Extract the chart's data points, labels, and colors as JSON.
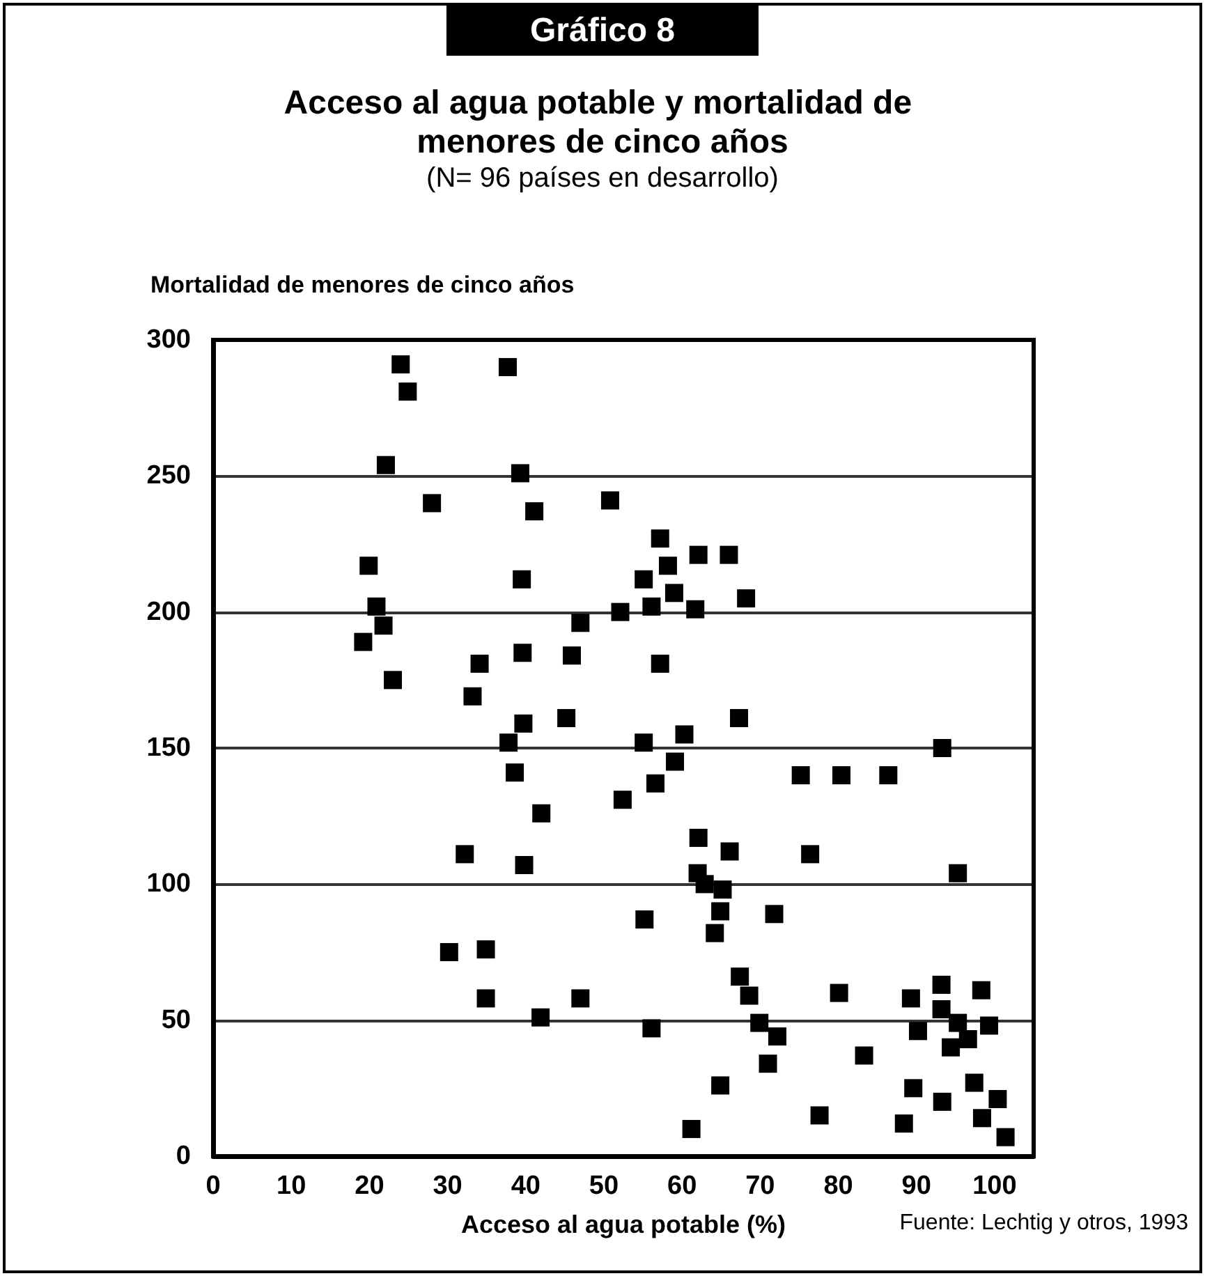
{
  "chart_data": {
    "type": "scatter",
    "title": "Gráfico 8",
    "subtitle": "Acceso al agua potable y mortalidad de menores de cinco años",
    "xlabel": "Acceso al agua potable (%)",
    "ylabel": "Mortalidad de menores de cinco años",
    "annotations": [
      "(N= 96 países en desarrollo)",
      "Fuente: Lechtig y otros, 1993"
    ],
    "x": [
      24.0,
      24.9,
      22.1,
      37.7,
      39.3,
      28.0,
      41.1,
      50.8,
      19.9,
      20.9,
      21.8,
      19.2,
      23.0,
      39.5,
      34.1,
      33.2,
      39.6,
      45.9,
      47.0,
      39.7,
      37.8,
      45.2,
      38.6,
      42.0,
      52.1,
      55.1,
      56.1,
      55.1,
      52.4,
      56.6,
      57.2,
      57.2,
      32.2,
      39.8,
      58.2,
      62.1,
      66.0,
      59.0,
      61.7,
      68.2,
      60.3,
      67.3,
      59.1,
      75.2,
      80.4,
      86.4,
      93.3,
      62.1,
      66.1,
      76.4,
      30.2,
      34.9,
      34.9,
      41.9,
      47.0,
      55.2,
      56.1,
      62.0,
      62.9,
      65.2,
      64.9,
      64.2,
      71.8,
      95.3,
      67.4,
      68.6,
      69.9,
      72.2,
      71.0,
      64.9,
      61.2,
      77.6,
      80.1,
      83.3,
      89.3,
      93.2,
      93.2,
      98.3,
      95.3,
      90.2,
      96.6,
      94.4,
      99.3,
      89.6,
      93.3,
      97.4,
      100.4,
      98.4,
      88.4,
      101.4
    ],
    "values": [
      291,
      281,
      254,
      290,
      251,
      240,
      237,
      241,
      217,
      202,
      195,
      189,
      175,
      212,
      181,
      169,
      185,
      184,
      196,
      159,
      152,
      161,
      141,
      126,
      200,
      212,
      202,
      152,
      131,
      137,
      181,
      227,
      111,
      107,
      217,
      221,
      221,
      207,
      201,
      205,
      155,
      161,
      145,
      140,
      140,
      140,
      150,
      117,
      112,
      111,
      75,
      76,
      58,
      51,
      58,
      87,
      47,
      104,
      100,
      98,
      90,
      82,
      89,
      104,
      66,
      59,
      49,
      44,
      34,
      26,
      10,
      15,
      60,
      37,
      58,
      63,
      54,
      61,
      49,
      46,
      43,
      40,
      48,
      25,
      20,
      27,
      21,
      14,
      12,
      7
    ],
    "color": "#000000",
    "marker": "square",
    "xlim": [
      0,
      105
    ],
    "ylim": [
      0,
      300
    ],
    "xticks": [
      0,
      10,
      20,
      30,
      40,
      50,
      60,
      70,
      80,
      90,
      100
    ],
    "yticks": [
      0,
      50,
      100,
      150,
      200,
      250,
      300
    ],
    "grid": "y"
  }
}
